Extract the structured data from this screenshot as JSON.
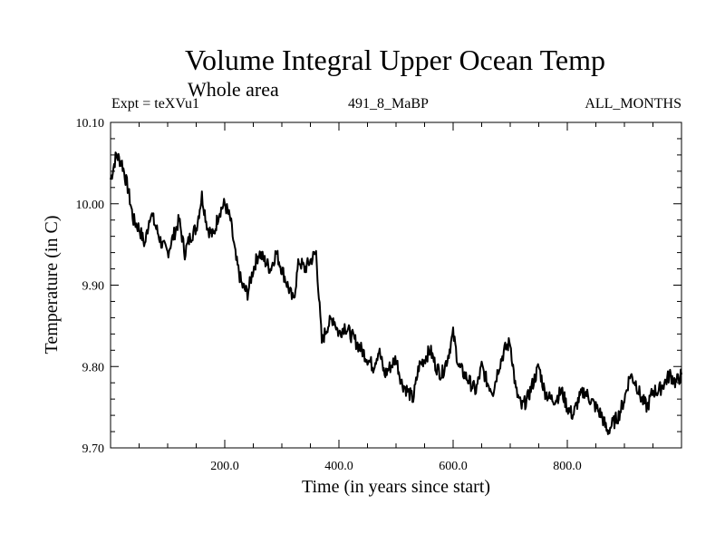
{
  "chart_data": {
    "type": "line",
    "title": "Volume Integral Upper Ocean Temp",
    "subtitle": "Whole area",
    "experiment_label": "Expt = teXVu1",
    "run_label": "491_8_MaBP",
    "months_label": "ALL_MONTHS",
    "xlabel": "Time (in years since start)",
    "ylabel": "Temperature (in C)",
    "xlim": [
      0,
      1000
    ],
    "ylim": [
      9.7,
      10.1
    ],
    "x_ticks": [
      200,
      400,
      600,
      800
    ],
    "x_tick_labels": [
      "200.0",
      "400.0",
      "600.0",
      "800.0"
    ],
    "y_ticks": [
      9.7,
      9.8,
      9.9,
      10.0,
      10.1
    ],
    "y_tick_labels": [
      "9.70",
      "9.80",
      "9.90",
      "10.00",
      "10.10"
    ],
    "line_color": "#000000",
    "series": [
      {
        "name": "Temperature",
        "x": [
          0,
          10,
          20,
          30,
          40,
          50,
          60,
          70,
          80,
          90,
          100,
          110,
          120,
          130,
          140,
          150,
          160,
          170,
          180,
          190,
          200,
          210,
          220,
          230,
          240,
          250,
          260,
          270,
          280,
          290,
          300,
          310,
          320,
          330,
          340,
          350,
          360,
          370,
          380,
          390,
          400,
          410,
          420,
          430,
          440,
          450,
          460,
          470,
          480,
          490,
          500,
          510,
          520,
          530,
          540,
          550,
          560,
          570,
          580,
          590,
          600,
          610,
          620,
          630,
          640,
          650,
          660,
          670,
          680,
          690,
          700,
          710,
          720,
          730,
          740,
          750,
          760,
          770,
          780,
          790,
          800,
          810,
          820,
          830,
          840,
          850,
          860,
          870,
          880,
          890,
          900,
          910,
          920,
          930,
          940,
          950,
          960,
          970,
          980,
          990,
          1000
        ],
        "values": [
          10.03,
          10.06,
          10.05,
          10.02,
          9.98,
          9.97,
          9.95,
          9.99,
          9.97,
          9.95,
          9.94,
          9.96,
          9.98,
          9.94,
          9.96,
          9.97,
          10.01,
          9.97,
          9.96,
          9.99,
          10.0,
          9.98,
          9.93,
          9.9,
          9.89,
          9.92,
          9.94,
          9.93,
          9.92,
          9.94,
          9.92,
          9.9,
          9.88,
          9.93,
          9.92,
          9.93,
          9.94,
          9.83,
          9.85,
          9.86,
          9.84,
          9.85,
          9.84,
          9.83,
          9.82,
          9.81,
          9.8,
          9.82,
          9.79,
          9.8,
          9.81,
          9.78,
          9.77,
          9.76,
          9.8,
          9.81,
          9.82,
          9.8,
          9.79,
          9.81,
          9.84,
          9.8,
          9.79,
          9.78,
          9.77,
          9.8,
          9.78,
          9.77,
          9.8,
          9.82,
          9.83,
          9.77,
          9.75,
          9.76,
          9.78,
          9.8,
          9.77,
          9.76,
          9.76,
          9.77,
          9.75,
          9.74,
          9.76,
          9.77,
          9.76,
          9.75,
          9.74,
          9.72,
          9.73,
          9.74,
          9.76,
          9.79,
          9.78,
          9.76,
          9.75,
          9.77,
          9.77,
          9.78,
          9.79,
          9.78,
          9.79
        ]
      }
    ]
  }
}
